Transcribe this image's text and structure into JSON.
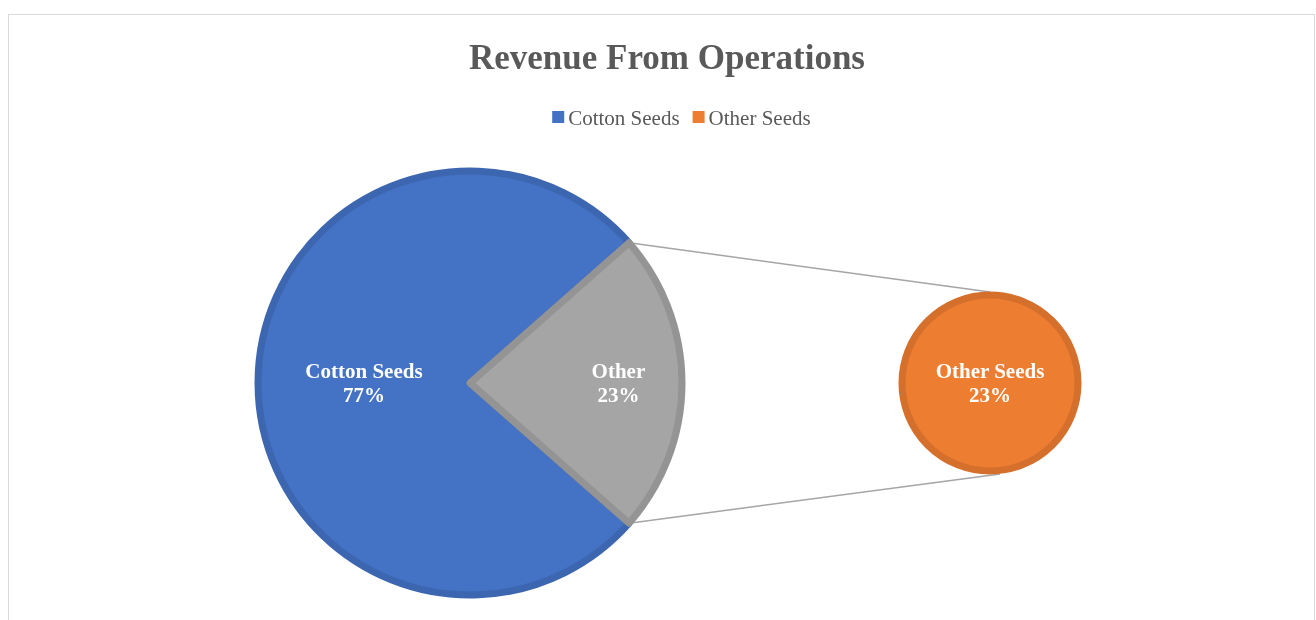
{
  "chart_data": [
    {
      "type": "pie",
      "title": "Revenue From Operations",
      "categories": [
        "Cotton Seeds",
        "Other"
      ],
      "values": [
        77,
        23
      ],
      "colors": [
        "#4472c4",
        "#a5a5a5"
      ],
      "value_labels": [
        "77%",
        "23%"
      ],
      "legend": "top"
    },
    {
      "type": "pie",
      "categories": [
        "Other Seeds"
      ],
      "values": [
        23
      ],
      "colors": [
        "#ed7d31"
      ],
      "value_labels": [
        "23%"
      ],
      "legend": "top"
    }
  ]
}
